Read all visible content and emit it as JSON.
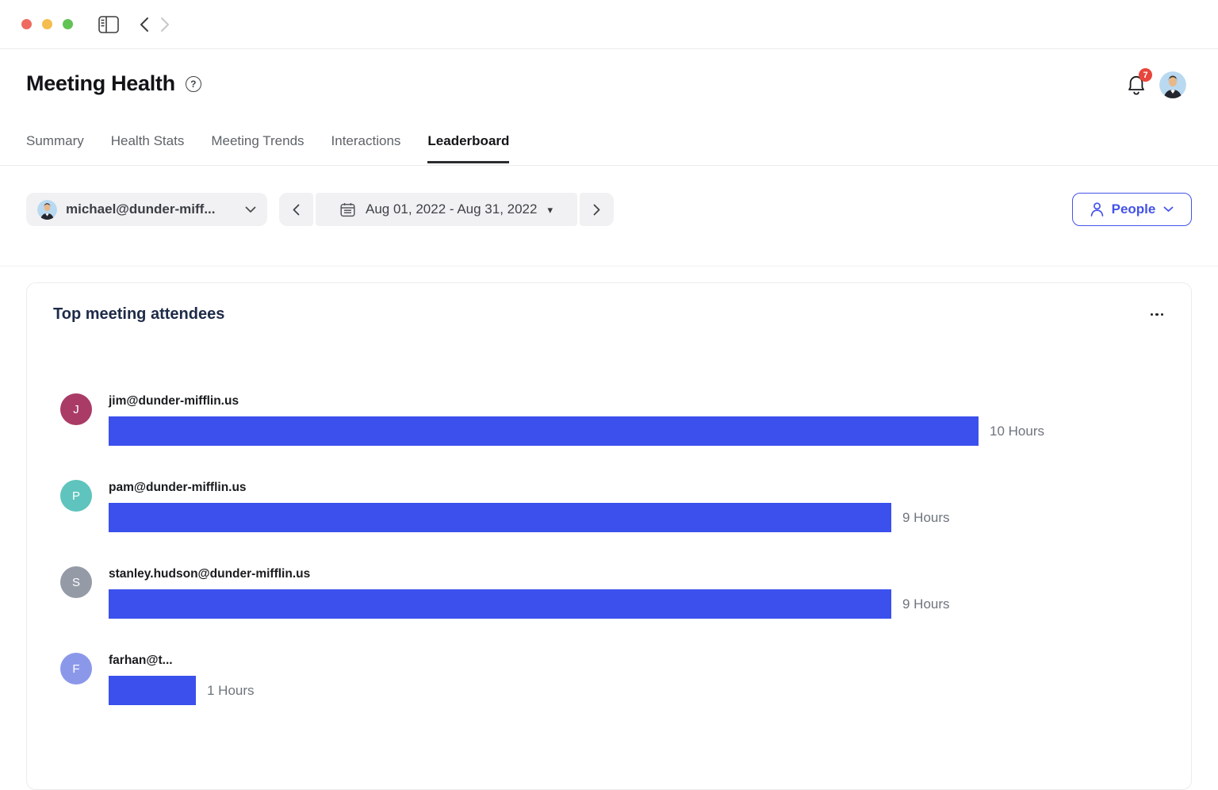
{
  "icons": {
    "caret_down": "▾",
    "help": "?",
    "ellipsis": "more-options"
  },
  "header": {
    "title": "Meeting Health",
    "notification_count": "7"
  },
  "tabs": [
    {
      "label": "Summary",
      "active": false
    },
    {
      "label": "Health Stats",
      "active": false
    },
    {
      "label": "Meeting Trends",
      "active": false
    },
    {
      "label": "Interactions",
      "active": false
    },
    {
      "label": "Leaderboard",
      "active": true
    }
  ],
  "filters": {
    "user_selector": {
      "value": "michael@dunder-miff..."
    },
    "date_range": {
      "value": "Aug 01, 2022 - Aug 31, 2022"
    },
    "people_button": {
      "label": "People"
    }
  },
  "card": {
    "title": "Top meeting attendees"
  },
  "chart_data": {
    "type": "bar",
    "orientation": "horizontal",
    "title": "Top meeting attendees",
    "unit": "Hours",
    "xmax": 10,
    "rows": [
      {
        "category": "jim@dunder-mifflin.us",
        "value": 10,
        "value_label": "10 Hours",
        "initial": "J",
        "avatar_color": "#a93b66"
      },
      {
        "category": "pam@dunder-mifflin.us",
        "value": 9,
        "value_label": "9 Hours",
        "initial": "P",
        "avatar_color": "#5ec4bd"
      },
      {
        "category": "stanley.hudson@dunder-mifflin.us",
        "value": 9,
        "value_label": "9 Hours",
        "initial": "S",
        "avatar_color": "#949aa6"
      },
      {
        "category": "farhan@t...",
        "value": 1,
        "value_label": "1 Hours",
        "initial": "F",
        "avatar_color": "#8b98ea"
      }
    ]
  },
  "colors": {
    "accent": "#4353e8",
    "bar": "#3b50ec",
    "badge": "#e8453c"
  }
}
